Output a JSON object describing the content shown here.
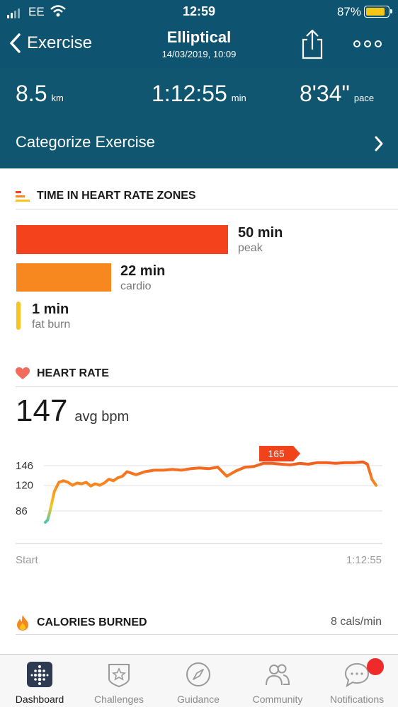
{
  "status_bar": {
    "carrier": "EE",
    "time": "12:59",
    "battery_pct": "87%",
    "battery_color": "#f5c518"
  },
  "nav": {
    "back_label": "Exercise",
    "title": "Elliptical",
    "subtitle": "14/03/2019, 10:09",
    "share_icon": "share-icon",
    "more_icon": "more-icon"
  },
  "stats": {
    "distance": {
      "value": "8.5",
      "unit": "km"
    },
    "duration": {
      "value": "1:12:55",
      "unit": "min"
    },
    "pace": {
      "value": "8'34\"",
      "unit": "pace"
    }
  },
  "categorize": {
    "label": "Categorize Exercise"
  },
  "zones": {
    "title": "TIME IN HEART RATE ZONES",
    "items": [
      {
        "value": "50 min",
        "label": "peak",
        "minutes": 50,
        "color": "#f4431c"
      },
      {
        "value": "22 min",
        "label": "cardio",
        "minutes": 22,
        "color": "#f7881f"
      },
      {
        "value": "1 min",
        "label": "fat burn",
        "minutes": 1,
        "color": "#f7c61e"
      }
    ]
  },
  "heart_rate": {
    "title": "HEART RATE",
    "avg": "147",
    "avg_unit": "avg bpm",
    "badge": "165",
    "y_labels": [
      "146",
      "120",
      "86"
    ],
    "x_start": "Start",
    "x_end": "1:12:55"
  },
  "calories": {
    "title": "CALORIES BURNED",
    "rate": "8 cals/min"
  },
  "tabs": [
    {
      "label": "Dashboard",
      "icon": "dashboard-icon"
    },
    {
      "label": "Challenges",
      "icon": "challenges-icon"
    },
    {
      "label": "Guidance",
      "icon": "guidance-icon"
    },
    {
      "label": "Community",
      "icon": "community-icon"
    },
    {
      "label": "Notifications",
      "icon": "notifications-icon"
    }
  ],
  "chart_data": {
    "type": "line",
    "title": "HEART RATE",
    "xlabel": "",
    "ylabel": "",
    "x_tick_labels": [
      "Start",
      "1:12:55"
    ],
    "y_ticks": [
      86,
      120,
      146
    ],
    "ylim": [
      60,
      170
    ],
    "series": [
      {
        "x_minutes": [
          0,
          0.5,
          1,
          2,
          3,
          4,
          5,
          6,
          7,
          8,
          9,
          10,
          11,
          12,
          13,
          14,
          15,
          16,
          17,
          18,
          20,
          22,
          24,
          26,
          28,
          30,
          32,
          34,
          36,
          38,
          40,
          42,
          44,
          46,
          48,
          50,
          52,
          54,
          56,
          58,
          60,
          62,
          64,
          66,
          68,
          70,
          71,
          72,
          72.9
        ],
        "values": [
          71,
          74,
          85,
          112,
          124,
          126,
          124,
          120,
          123,
          122,
          124,
          119,
          122,
          120,
          123,
          128,
          126,
          130,
          132,
          138,
          134,
          138,
          140,
          140,
          141,
          140,
          142,
          143,
          142,
          144,
          132,
          139,
          144,
          145,
          149,
          149,
          148,
          147,
          149,
          148,
          150,
          150,
          149,
          150,
          150,
          151,
          148,
          128,
          120
        ]
      }
    ],
    "annotations": [
      {
        "text": "165"
      }
    ]
  }
}
